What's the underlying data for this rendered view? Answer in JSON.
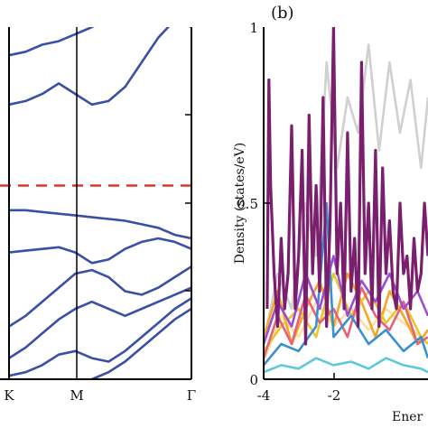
{
  "chart_data": [
    {
      "type": "line",
      "title": "",
      "x_categories": [
        "K",
        "M",
        "Γ"
      ],
      "xlabel": "",
      "ylabel": "",
      "fermi_level": 0.55,
      "colors": {
        "bands": "#3a4fa6",
        "fermi": "#e0352b",
        "frame": "#000000"
      },
      "ylim": [
        0,
        1
      ],
      "bands": [
        {
          "x": [
            0,
            0.2,
            0.4,
            0.6,
            0.8,
            1.0,
            1.2,
            1.4,
            1.6,
            1.8,
            2.0,
            2.1,
            2.2
          ],
          "y": [
            0.92,
            0.93,
            0.95,
            0.96,
            0.98,
            1.0,
            1.03,
            1.05,
            1.05,
            1.04,
            1.02,
            1.01,
            1.0
          ]
        },
        {
          "x": [
            0,
            0.2,
            0.4,
            0.6,
            0.8,
            1.0,
            1.2,
            1.4,
            1.6,
            1.8,
            2.0,
            2.2
          ],
          "y": [
            0.78,
            0.79,
            0.81,
            0.84,
            0.81,
            0.78,
            0.79,
            0.83,
            0.9,
            0.97,
            1.02,
            1.05
          ]
        },
        {
          "x": [
            0,
            0.2,
            0.4,
            0.6,
            0.8,
            1.0,
            1.2,
            1.4,
            1.6,
            1.8,
            2.0,
            2.2
          ],
          "y": [
            0.48,
            0.48,
            0.475,
            0.47,
            0.465,
            0.46,
            0.455,
            0.45,
            0.44,
            0.43,
            0.41,
            0.4
          ]
        },
        {
          "x": [
            0,
            0.2,
            0.4,
            0.6,
            0.8,
            1.0,
            1.2,
            1.4,
            1.6,
            1.8,
            2.0,
            2.2
          ],
          "y": [
            0.36,
            0.365,
            0.37,
            0.375,
            0.36,
            0.33,
            0.34,
            0.37,
            0.39,
            0.4,
            0.39,
            0.37
          ]
        },
        {
          "x": [
            0,
            0.2,
            0.4,
            0.6,
            0.8,
            1.0,
            1.2,
            1.4,
            1.6,
            1.8,
            2.0,
            2.2
          ],
          "y": [
            0.15,
            0.18,
            0.22,
            0.26,
            0.3,
            0.31,
            0.29,
            0.25,
            0.24,
            0.26,
            0.29,
            0.32
          ]
        },
        {
          "x": [
            0,
            0.2,
            0.4,
            0.6,
            0.8,
            1.0,
            1.2,
            1.4,
            1.6,
            1.8,
            2.0,
            2.2
          ],
          "y": [
            0.06,
            0.09,
            0.13,
            0.17,
            0.2,
            0.22,
            0.2,
            0.18,
            0.2,
            0.22,
            0.24,
            0.26
          ]
        },
        {
          "x": [
            0,
            0.2,
            0.4,
            0.6,
            0.8,
            1.0,
            1.2,
            1.4,
            1.6,
            1.8,
            2.0,
            2.2
          ],
          "y": [
            0.01,
            0.02,
            0.04,
            0.07,
            0.08,
            0.06,
            0.05,
            0.08,
            0.12,
            0.16,
            0.2,
            0.23
          ]
        },
        {
          "x": [
            1.0,
            1.2,
            1.4,
            1.6,
            1.8,
            2.0,
            2.2
          ],
          "y": [
            0.0,
            0.02,
            0.05,
            0.09,
            0.13,
            0.17,
            0.2
          ]
        }
      ]
    },
    {
      "type": "line",
      "title": "",
      "panel_label": "(b)",
      "xlabel": "Ener",
      "ylabel": "Density (states/eV)",
      "xlim": [
        -4,
        0.7
      ],
      "ylim": [
        0,
        1
      ],
      "x_ticks": [
        "-4",
        "-2"
      ],
      "y_ticks": [
        "0",
        "0.5",
        "1"
      ],
      "grid": false,
      "series": [
        {
          "color": "#d0d0d0",
          "x": [
            -4,
            -3.6,
            -3.2,
            -2.8,
            -2.5,
            -2.2,
            -1.9,
            -1.6,
            -1.3,
            -1.0,
            -0.7,
            -0.4,
            -0.1,
            0.2,
            0.5,
            0.7
          ],
          "y": [
            0.1,
            0.3,
            0.2,
            0.5,
            0.35,
            0.9,
            0.6,
            0.8,
            0.7,
            0.95,
            0.65,
            0.9,
            0.7,
            0.85,
            0.6,
            0.8
          ]
        },
        {
          "color": "#fbe0a0",
          "x": [
            -4,
            -3.5,
            -3.0,
            -2.5,
            -2.0,
            -1.5,
            -1.0,
            -0.5,
            0.0,
            0.5,
            0.7
          ],
          "y": [
            0.05,
            0.18,
            0.12,
            0.22,
            0.15,
            0.2,
            0.14,
            0.2,
            0.16,
            0.12,
            0.1
          ]
        },
        {
          "color": "#f5a623",
          "x": [
            -4,
            -3.6,
            -3.2,
            -2.8,
            -2.4,
            -2.0,
            -1.6,
            -1.2,
            -0.8,
            -0.4,
            0.0,
            0.4,
            0.7
          ],
          "y": [
            0.12,
            0.25,
            0.1,
            0.2,
            0.28,
            0.15,
            0.3,
            0.22,
            0.12,
            0.25,
            0.18,
            0.1,
            0.14
          ]
        },
        {
          "color": "#e6c830",
          "x": [
            -4,
            -3.5,
            -3.0,
            -2.5,
            -2.0,
            -1.5,
            -1.0,
            -0.5,
            0.0,
            0.5,
            0.7
          ],
          "y": [
            0.08,
            0.15,
            0.2,
            0.12,
            0.3,
            0.18,
            0.25,
            0.16,
            0.22,
            0.12,
            0.1
          ]
        },
        {
          "color": "#e8607a",
          "x": [
            -4,
            -3.6,
            -3.2,
            -2.8,
            -2.4,
            -2.0,
            -1.6,
            -1.2,
            -0.8,
            -0.4,
            0.0,
            0.4,
            0.7
          ],
          "y": [
            0.06,
            0.18,
            0.1,
            0.24,
            0.16,
            0.2,
            0.12,
            0.26,
            0.18,
            0.14,
            0.22,
            0.1,
            0.12
          ]
        },
        {
          "color": "#3a8fd0",
          "x": [
            -4,
            -3.5,
            -3.0,
            -2.5,
            -2.2,
            -2.0,
            -1.5,
            -1.0,
            -0.5,
            0.0,
            0.5,
            0.7
          ],
          "y": [
            0.04,
            0.1,
            0.08,
            0.15,
            0.5,
            0.12,
            0.18,
            0.1,
            0.14,
            0.08,
            0.12,
            0.06
          ]
        },
        {
          "color": "#5cc8d8",
          "x": [
            -4,
            -3.5,
            -3.0,
            -2.5,
            -2.0,
            -1.5,
            -1.0,
            -0.5,
            0.0,
            0.5,
            0.7
          ],
          "y": [
            0.02,
            0.04,
            0.03,
            0.06,
            0.04,
            0.05,
            0.03,
            0.06,
            0.04,
            0.03,
            0.02
          ]
        },
        {
          "color": "#9b4fd0",
          "x": [
            -4,
            -3.6,
            -3.2,
            -2.8,
            -2.4,
            -2.0,
            -1.6,
            -1.2,
            -0.8,
            -0.4,
            0.0,
            0.4,
            0.7
          ],
          "y": [
            0.1,
            0.22,
            0.15,
            0.3,
            0.2,
            0.35,
            0.18,
            0.28,
            0.22,
            0.3,
            0.2,
            0.25,
            0.18
          ]
        },
        {
          "color": "#7a1e6e",
          "x": [
            -3.9,
            -3.85,
            -3.8,
            -3.7,
            -3.6,
            -3.5,
            -3.4,
            -3.3,
            -3.2,
            -3.1,
            -3.0,
            -2.9,
            -2.8,
            -2.7,
            -2.6,
            -2.5,
            -2.4,
            -2.3,
            -2.2,
            -2.1,
            -2.0,
            -1.9,
            -1.8,
            -1.7,
            -1.6,
            -1.5,
            -1.4,
            -1.3,
            -1.2,
            -1.1,
            -1.0,
            -0.9,
            -0.8,
            -0.7,
            -0.6,
            -0.5,
            -0.4,
            -0.3,
            -0.2,
            -0.1,
            0.0,
            0.1,
            0.2,
            0.3,
            0.4,
            0.5,
            0.6,
            0.7
          ],
          "y": [
            0.2,
            0.85,
            0.55,
            0.3,
            0.15,
            0.4,
            0.2,
            0.3,
            0.72,
            0.2,
            0.35,
            0.65,
            0.1,
            0.75,
            0.3,
            0.55,
            0.25,
            0.8,
            0.15,
            0.45,
            1.0,
            0.3,
            0.5,
            0.2,
            0.7,
            0.25,
            0.4,
            0.15,
            0.9,
            0.3,
            0.5,
            0.2,
            0.65,
            0.15,
            0.6,
            0.3,
            0.45,
            0.25,
            0.2,
            0.5,
            0.3,
            0.35,
            0.2,
            0.4,
            0.25,
            0.3,
            0.5,
            0.35
          ]
        }
      ]
    }
  ]
}
